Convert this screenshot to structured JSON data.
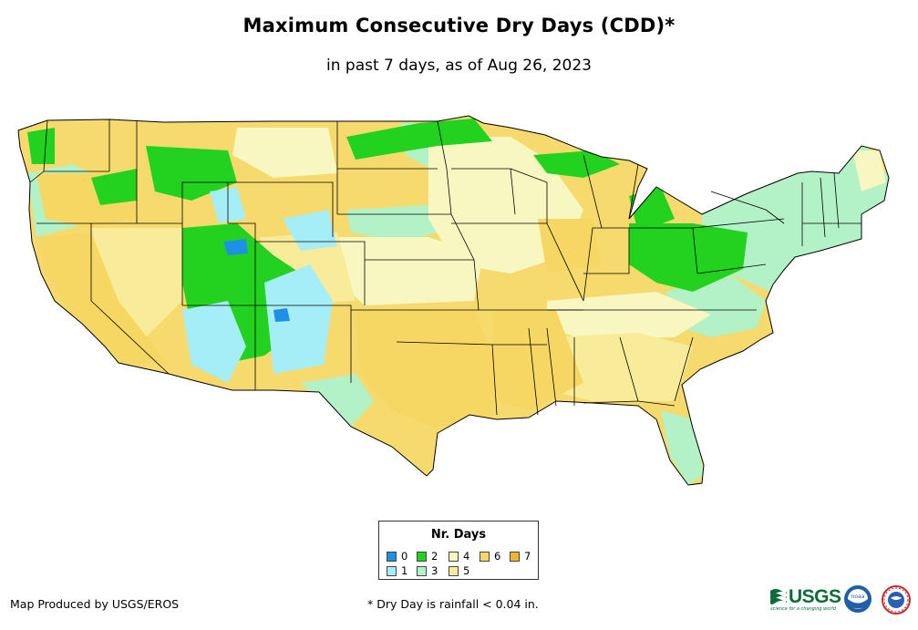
{
  "title": "Maximum Consecutive Dry Days (CDD)*",
  "subtitle": "in past 7 days, as of Aug 26, 2023",
  "map": {
    "region": "Contiguous United States",
    "palette": {
      "0": "#1e90e6",
      "1": "#a6eef7",
      "2": "#22d21e",
      "3": "#b3f2c6",
      "4": "#f9f7c1",
      "5": "#f8ec9a",
      "6": "#f6d763",
      "7": "#f1b62b"
    },
    "background_fill": "#f6da6e",
    "boundary_color": "#000000"
  },
  "legend": {
    "title": "Nr. Days",
    "items": [
      {
        "label": "0",
        "color": "#1e90e6"
      },
      {
        "label": "1",
        "color": "#a6eef7"
      },
      {
        "label": "2",
        "color": "#22d21e"
      },
      {
        "label": "3",
        "color": "#b3f2c6"
      },
      {
        "label": "4",
        "color": "#f9f7c1"
      },
      {
        "label": "5",
        "color": "#f8ec9a"
      },
      {
        "label": "6",
        "color": "#f6d763"
      },
      {
        "label": "7",
        "color": "#f1b62b"
      }
    ]
  },
  "footer": {
    "credit": "Map Produced by USGS/EROS",
    "footnote": "* Dry Day is rainfall < 0.04 in.",
    "usgs_logo_text": "USGS",
    "usgs_tagline": "science for a changing world",
    "noaa_logo_text": "noaa"
  }
}
